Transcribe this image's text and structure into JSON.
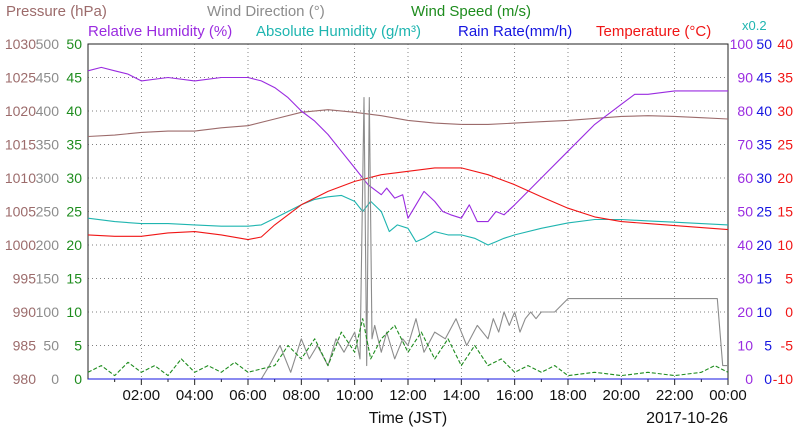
{
  "chart_data": {
    "type": "line",
    "date": "2017-10-26",
    "xlabel": "Time (JST)",
    "x_ticks": [
      "02:00",
      "04:00",
      "06:00",
      "08:00",
      "10:00",
      "12:00",
      "14:00",
      "16:00",
      "18:00",
      "20:00",
      "22:00",
      "00:00"
    ],
    "x_range_hours": [
      0,
      24
    ],
    "grid": true,
    "axes": [
      {
        "key": "pressure",
        "label": "Pressure (hPa)",
        "color": "#9c6b6b",
        "range": [
          980,
          1030
        ],
        "ticks": [
          "980",
          "985",
          "990",
          "995",
          "1000",
          "1005",
          "1010",
          "1015",
          "1020",
          "1025",
          "1030"
        ]
      },
      {
        "key": "wind_dir",
        "label": "Wind Direction (°)",
        "color": "#8c8c8c",
        "range": [
          0,
          500
        ],
        "ticks": [
          "0",
          "50",
          "100",
          "150",
          "200",
          "250",
          "300",
          "350",
          "400",
          "450",
          "500"
        ]
      },
      {
        "key": "wind_speed",
        "label": "Wind Speed (m/s)",
        "color": "#1e8c1e",
        "range": [
          0,
          50
        ],
        "ticks": [
          "0",
          "5",
          "10",
          "15",
          "20",
          "25",
          "30",
          "35",
          "40",
          "45",
          "50"
        ]
      },
      {
        "key": "rh",
        "label": "Relative Humidity (%)",
        "color": "#9a2be0",
        "range": [
          0,
          100
        ],
        "ticks": [
          "0",
          "10",
          "20",
          "30",
          "40",
          "50",
          "60",
          "70",
          "80",
          "90",
          "100"
        ]
      },
      {
        "key": "ah",
        "label": "Absolute Humidity (g/m³)",
        "color": "#1fb5b0",
        "scale_note": "x0.2",
        "range": [
          0,
          50
        ]
      },
      {
        "key": "rain",
        "label": "Rain Rate(mm/h)",
        "color": "#1515e0",
        "range": [
          0,
          50
        ],
        "ticks": [
          "0",
          "5",
          "10",
          "15",
          "20",
          "25",
          "30",
          "35",
          "40",
          "45",
          "50"
        ]
      },
      {
        "key": "temp",
        "label": "Temperature (°C)",
        "color": "#f01616",
        "range": [
          -10,
          40
        ],
        "ticks": [
          "-10",
          "-5",
          "0",
          "5",
          "10",
          "15",
          "20",
          "25",
          "30",
          "35",
          "40"
        ]
      }
    ],
    "series": [
      {
        "name": "Pressure (hPa)",
        "color": "#9c6b6b",
        "x": [
          0,
          1,
          2,
          3,
          4,
          5,
          6,
          7,
          8,
          9,
          10,
          11,
          12,
          13,
          14,
          15,
          16,
          17,
          18,
          19,
          20,
          21,
          22,
          23,
          24
        ],
        "values": [
          1016.2,
          1016.4,
          1016.8,
          1017.0,
          1017.0,
          1017.5,
          1017.8,
          1018.8,
          1019.8,
          1020.2,
          1019.8,
          1019.3,
          1018.6,
          1018.2,
          1018.0,
          1018.0,
          1018.2,
          1018.4,
          1018.6,
          1018.9,
          1019.2,
          1019.3,
          1019.2,
          1019.0,
          1018.8
        ]
      },
      {
        "name": "Relative Humidity (%)",
        "color": "#9a2be0",
        "x": [
          0,
          0.5,
          1,
          1.5,
          2,
          3,
          4,
          5,
          6,
          6.5,
          7,
          7.5,
          8,
          8.5,
          9,
          9.5,
          10,
          10.5,
          11,
          11.2,
          11.5,
          11.8,
          12,
          12.3,
          12.6,
          13,
          13.3,
          13.6,
          14,
          14.3,
          14.6,
          15,
          15.3,
          15.6,
          16,
          17,
          18,
          19,
          20,
          20.5,
          21,
          22,
          23,
          23.5,
          24
        ],
        "values": [
          92,
          93,
          92,
          91,
          89,
          90,
          89,
          90,
          90,
          89,
          87,
          84,
          80,
          77,
          73,
          68,
          63,
          58,
          55,
          57,
          54,
          55,
          48,
          52,
          56,
          53,
          50,
          49,
          48,
          52,
          47,
          47,
          50,
          49,
          52,
          60,
          68,
          76,
          82,
          85,
          85,
          86,
          86,
          86,
          86
        ]
      },
      {
        "name": "Absolute Humidity (g/m³)",
        "color": "#1fb5b0",
        "x": [
          0,
          1,
          2,
          3,
          4,
          5,
          6,
          6.5,
          7,
          7.5,
          8,
          8.5,
          9,
          9.5,
          10,
          10.3,
          10.6,
          11,
          11.3,
          11.6,
          12,
          12.3,
          12.6,
          13,
          13.5,
          14,
          14.5,
          15,
          15.3,
          15.6,
          16,
          17,
          18,
          19,
          20,
          21,
          22,
          23,
          24
        ],
        "values": [
          24,
          23.5,
          23.2,
          23.2,
          23.0,
          22.8,
          22.8,
          23.0,
          24.0,
          25.0,
          26.0,
          26.8,
          27.2,
          27.4,
          26.5,
          25.0,
          26.5,
          25.0,
          22.0,
          23.0,
          22.5,
          20.5,
          21.0,
          22.0,
          21.5,
          21.5,
          21.0,
          20.0,
          20.5,
          21.0,
          21.5,
          22.5,
          23.3,
          23.8,
          23.8,
          23.6,
          23.4,
          23.2,
          23.0
        ]
      },
      {
        "name": "Temperature (°C)",
        "color": "#f01616",
        "x": [
          0,
          1,
          2,
          3,
          4,
          5,
          6,
          6.5,
          7,
          8,
          9,
          10,
          11,
          12,
          13,
          14,
          15,
          16,
          17,
          18,
          19,
          20,
          21,
          22,
          23,
          24
        ],
        "values": [
          11.5,
          11.3,
          11.3,
          11.8,
          12.0,
          11.5,
          10.8,
          11.2,
          13.0,
          16.0,
          18.0,
          19.5,
          20.5,
          21.0,
          21.5,
          21.5,
          20.5,
          19.0,
          17.2,
          15.5,
          14.2,
          13.5,
          13.2,
          12.9,
          12.6,
          12.3
        ]
      },
      {
        "name": "Wind Direction (°)",
        "color": "#8c8c8c",
        "x": [
          0,
          6.5,
          6.8,
          7.2,
          7.6,
          8,
          8.3,
          8.6,
          9,
          9.3,
          9.6,
          10,
          10.2,
          10.35,
          10.45,
          10.55,
          10.65,
          10.75,
          11,
          11.2,
          11.5,
          11.8,
          12,
          12.3,
          12.6,
          13,
          13.4,
          13.8,
          14.2,
          14.6,
          15,
          15.2,
          15.4,
          15.6,
          15.8,
          16,
          16.2,
          16.4,
          16.6,
          16.8,
          17,
          17.5,
          18,
          18.5,
          19,
          20,
          21,
          22,
          23.3,
          23.6,
          23.8,
          24
        ],
        "values": [
          0,
          0,
          20,
          50,
          10,
          60,
          30,
          50,
          20,
          60,
          40,
          70,
          30,
          420,
          20,
          420,
          60,
          80,
          40,
          70,
          30,
          60,
          50,
          90,
          40,
          70,
          60,
          90,
          50,
          80,
          60,
          90,
          70,
          100,
          80,
          100,
          70,
          90,
          100,
          90,
          100,
          100,
          120,
          120,
          120,
          120,
          120,
          120,
          120,
          120,
          20,
          20
        ]
      },
      {
        "name": "Wind Speed (m/s)",
        "color": "#1e8c1e",
        "x": [
          0,
          0.5,
          1,
          1.5,
          2,
          2.5,
          3,
          3.5,
          4,
          4.5,
          5,
          5.5,
          6,
          6.5,
          7,
          7.5,
          8,
          8.5,
          9,
          9.5,
          10,
          10.3,
          10.6,
          11,
          11.5,
          12,
          12.5,
          13,
          13.5,
          14,
          14.5,
          15,
          15.5,
          16,
          16.5,
          17,
          17.5,
          18,
          19,
          20,
          21,
          22,
          23,
          23.5,
          24
        ],
        "values": [
          1,
          2,
          0.5,
          2.5,
          1,
          2,
          0.5,
          3,
          1,
          2,
          1,
          2.5,
          1,
          1.5,
          2,
          5,
          3,
          6,
          2,
          7,
          4,
          9,
          3,
          6,
          8,
          4,
          7,
          3,
          6,
          2,
          5,
          2,
          3,
          1,
          2,
          1,
          2,
          0.5,
          1,
          0.5,
          1,
          0.5,
          1,
          2,
          1
        ]
      },
      {
        "name": "Rain Rate(mm/h)",
        "color": "#1515e0",
        "x": [
          0,
          24
        ],
        "values": [
          0,
          0
        ]
      }
    ]
  }
}
